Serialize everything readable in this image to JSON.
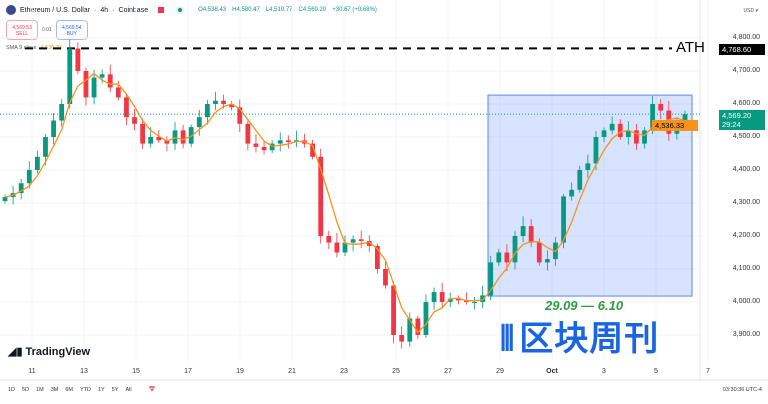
{
  "header": {
    "symbol": "Ethereum / U.S. Dollar",
    "timeframe": "4h",
    "exchange": "Coinbase",
    "open": "O4,538.43",
    "high": "H4,580.47",
    "low": "L4,510.77",
    "close": "C4,569.20",
    "change": "+30.67 (+0.68%)"
  },
  "trade": {
    "sell_price": "4,569.53",
    "sell_label": "SELL",
    "spread": "0.01",
    "buy_price": "4,569.54",
    "buy_label": "BUY"
  },
  "indicator": {
    "label": "SMA 9 close",
    "value": "4,536.33",
    "color": "#f7931a"
  },
  "currency": "USD",
  "annotations": {
    "ath_label": "ATH",
    "ath_price": "4,768.60",
    "range_label": "29.09 — 6.10",
    "box_color": "#2962ff"
  },
  "price_badges": {
    "last": "4,569.20",
    "countdown": "29:24",
    "sma": "4,536.33"
  },
  "bottom_bar": {
    "ranges": [
      "1D",
      "5D",
      "1M",
      "3M",
      "6M",
      "YTD",
      "1Y",
      "5Y",
      "All"
    ],
    "time": "03:30:36 UTC-4"
  },
  "branding": {
    "tradingview": "TradingView",
    "watermark": "区块周刊"
  },
  "chart_data": {
    "type": "candlestick",
    "y_ticks": [
      "4,800.00",
      "4,700.00",
      "4,600.00",
      "4,500.00",
      "4,400.00",
      "4,300.00",
      "4,200.00",
      "4,100.00",
      "4,000.00",
      "3,900.00"
    ],
    "x_ticks": [
      "11",
      "13",
      "15",
      "17",
      "19",
      "21",
      "23",
      "25",
      "27",
      "29",
      "Oct",
      "3",
      "5",
      "7"
    ],
    "ylim": [
      3850,
      4820
    ],
    "ath": 4768.6,
    "range_box": {
      "from": "29.09",
      "to": "6.10",
      "price_top": 4627,
      "price_bottom": 4018
    },
    "closes": [
      4318,
      4330,
      4360,
      4400,
      4440,
      4500,
      4550,
      4600,
      4768,
      4700,
      4620,
      4680,
      4690,
      4650,
      4620,
      4560,
      4540,
      4480,
      4500,
      4490,
      4480,
      4520,
      4480,
      4530,
      4560,
      4600,
      4610,
      4600,
      4590,
      4540,
      4480,
      4470,
      4460,
      4480,
      4490,
      4485,
      4490,
      4480,
      4440,
      4200,
      4180,
      4150,
      4180,
      4190,
      4185,
      4170,
      4100,
      4050,
      3900,
      3880,
      3950,
      3900,
      4000,
      4030,
      4000,
      4010,
      4005,
      4000,
      4000,
      4020,
      4120,
      4150,
      4120,
      4200,
      4230,
      4180,
      4120,
      4130,
      4180,
      4320,
      4340,
      4400,
      4420,
      4500,
      4520,
      4540,
      4500,
      4520,
      4480,
      4520,
      4600,
      4580,
      4510,
      4540,
      4569.2
    ]
  }
}
